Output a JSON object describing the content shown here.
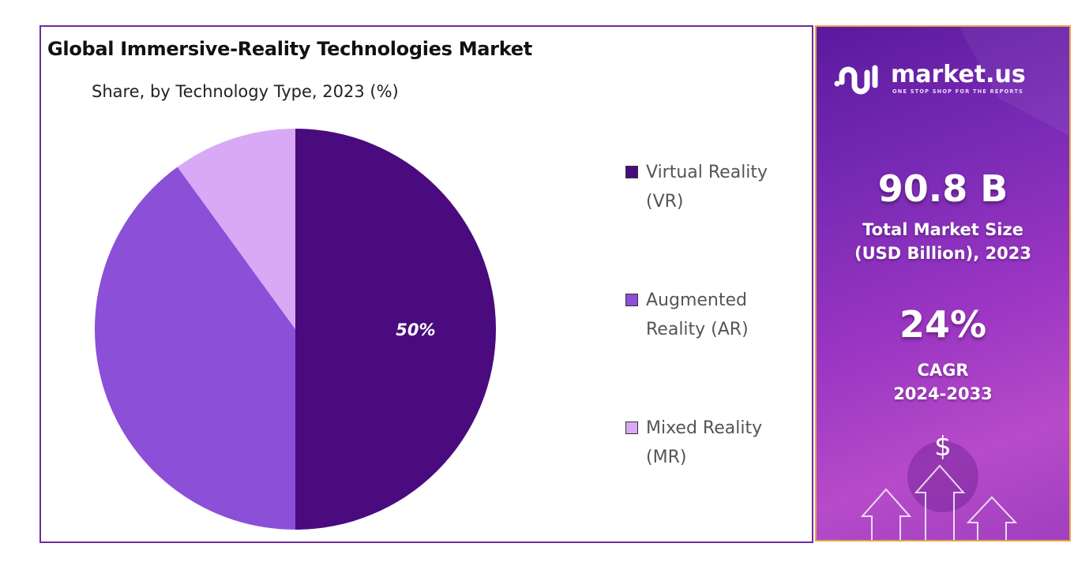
{
  "chart_data": {
    "type": "pie",
    "title": "Global Immersive-Reality Technologies Market",
    "subtitle": "Share, by Technology Type, 2023 (%)",
    "slices": [
      {
        "name": "Virtual Reality (VR)",
        "legend_lines": [
          "Virtual Reality",
          "(VR)"
        ],
        "value": 50,
        "label": "50%",
        "color": "#4a0b7e"
      },
      {
        "name": "Augmented Reality (AR)",
        "legend_lines": [
          "Augmented",
          "Reality (AR)"
        ],
        "value": 40,
        "label": "",
        "color": "#8b4fd8"
      },
      {
        "name": "Mixed Reality (MR)",
        "legend_lines": [
          "Mixed Reality",
          "(MR)"
        ],
        "value": 10,
        "label": "",
        "color": "#d8a9f5"
      }
    ],
    "legend_position": "right"
  },
  "brand": {
    "name": "market.us",
    "tagline": "ONE STOP SHOP FOR THE REPORTS"
  },
  "stats": {
    "market_size": "90.8 B",
    "market_size_label_1": "Total Market Size",
    "market_size_label_2": "(USD Billion), 2023",
    "cagr": "24%",
    "cagr_label_1": "CAGR",
    "cagr_label_2": "2024-2033"
  },
  "icons": {
    "dollar": "$"
  }
}
